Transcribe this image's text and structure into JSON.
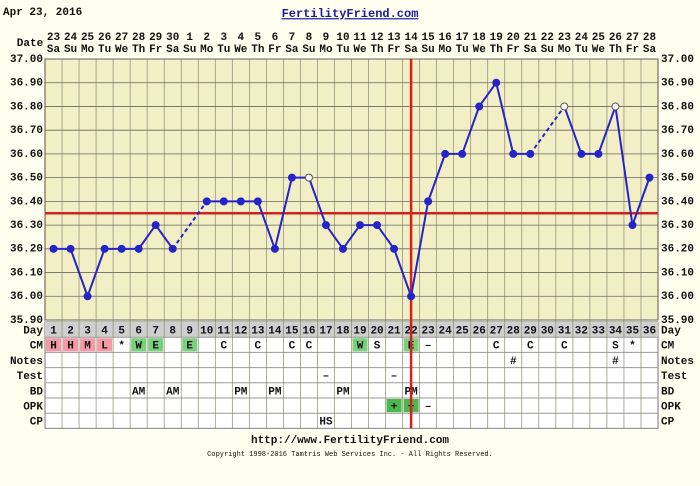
{
  "header": {
    "date": "Apr 23, 2016",
    "site": "FertilityFriend.com"
  },
  "chart_data": {
    "type": "line",
    "date_label": "Date",
    "dates": [
      "23",
      "24",
      "25",
      "26",
      "27",
      "28",
      "29",
      "30",
      "1",
      "2",
      "3",
      "4",
      "5",
      "6",
      "7",
      "8",
      "9",
      "10",
      "11",
      "12",
      "13",
      "14",
      "15",
      "16",
      "17",
      "18",
      "19",
      "20",
      "21",
      "22",
      "23",
      "24",
      "25",
      "26",
      "27",
      "28"
    ],
    "categories": [
      "Sa",
      "Su",
      "Mo",
      "Tu",
      "We",
      "Th",
      "Fr",
      "Sa",
      "Su",
      "Mo",
      "Tu",
      "We",
      "Th",
      "Fr",
      "Sa",
      "Su",
      "Mo",
      "Tu",
      "We",
      "Th",
      "Fr",
      "Sa",
      "Su",
      "Mo",
      "Tu",
      "We",
      "Th",
      "Fr",
      "Sa",
      "Su",
      "Mo",
      "Tu",
      "We",
      "Th",
      "Fr",
      "Sa"
    ],
    "values": [
      36.2,
      36.2,
      36.0,
      36.2,
      36.2,
      36.2,
      36.3,
      36.2,
      null,
      36.4,
      36.4,
      36.4,
      36.4,
      36.2,
      36.5,
      36.5,
      36.3,
      36.2,
      36.3,
      36.3,
      36.2,
      36.0,
      36.4,
      36.6,
      36.6,
      36.8,
      36.9,
      36.6,
      36.6,
      null,
      36.8,
      36.6,
      36.6,
      36.8,
      36.3,
      36.5
    ],
    "color": "#2424c8",
    "open_markers": [
      16,
      31,
      34
    ],
    "ylim": [
      35.9,
      37.0
    ],
    "yticks": [
      {
        "value": 37.0,
        "label": "37.00"
      },
      {
        "value": 36.9,
        "label": "36.90"
      },
      {
        "value": 36.8,
        "label": "36.80"
      },
      {
        "value": 36.7,
        "label": "36.70"
      },
      {
        "value": 36.6,
        "label": "36.60"
      },
      {
        "value": 36.5,
        "label": "36.50"
      },
      {
        "value": 36.4,
        "label": "36.40"
      },
      {
        "value": 36.3,
        "label": "36.30"
      },
      {
        "value": 36.2,
        "label": "36.20"
      },
      {
        "value": 36.1,
        "label": "36.10"
      },
      {
        "value": 36.0,
        "label": "36.00"
      },
      {
        "value": 35.9,
        "label": "35.90"
      }
    ],
    "grid": true,
    "coverline": 36.35,
    "ovulation_day": 22,
    "marker_line_color": "#d42020",
    "table": {
      "rows": [
        {
          "label": "Day",
          "cells": [
            1,
            2,
            3,
            4,
            5,
            6,
            7,
            8,
            9,
            10,
            11,
            12,
            13,
            14,
            15,
            16,
            17,
            18,
            19,
            20,
            21,
            22,
            23,
            24,
            25,
            26,
            27,
            28,
            29,
            30,
            31,
            32,
            33,
            34,
            35,
            36
          ]
        },
        {
          "label": "CM",
          "cells": [
            {
              "text": "H",
              "fill": "#f29aa6"
            },
            {
              "text": "H",
              "fill": "#f29aa6"
            },
            {
              "text": "M",
              "fill": "#f29aa6"
            },
            {
              "text": "L",
              "fill": "#f29aa6"
            },
            "*",
            {
              "text": "W",
              "fill": "#7ccf7c"
            },
            {
              "text": "E",
              "fill": "#7ccf7c"
            },
            null,
            {
              "text": "E",
              "fill": "#7ccf7c"
            },
            null,
            "C",
            null,
            "C",
            null,
            "C",
            "C",
            null,
            null,
            {
              "text": "W",
              "fill": "#7ccf7c"
            },
            "S",
            null,
            {
              "text": "E",
              "fill": "#7ccf7c"
            },
            "–",
            null,
            null,
            null,
            "C",
            null,
            "C",
            null,
            "C",
            null,
            null,
            "S",
            "*",
            null
          ]
        },
        {
          "label": "Notes",
          "cells": [
            null,
            null,
            null,
            null,
            null,
            null,
            null,
            null,
            null,
            null,
            null,
            null,
            null,
            null,
            null,
            null,
            null,
            null,
            null,
            null,
            null,
            null,
            null,
            null,
            null,
            null,
            null,
            "#",
            null,
            null,
            null,
            null,
            null,
            "#",
            null,
            null
          ]
        },
        {
          "label": "Test",
          "cells": [
            null,
            null,
            null,
            null,
            null,
            null,
            null,
            null,
            null,
            null,
            null,
            null,
            null,
            null,
            null,
            null,
            "–",
            null,
            null,
            null,
            "–",
            null,
            null,
            null,
            null,
            null,
            null,
            null,
            null,
            null,
            null,
            null,
            null,
            null,
            null,
            null
          ]
        },
        {
          "label": "BD",
          "cells": [
            null,
            null,
            null,
            null,
            null,
            "AM",
            null,
            "AM",
            null,
            null,
            null,
            "PM",
            null,
            "PM",
            null,
            null,
            null,
            "PM",
            null,
            null,
            null,
            "PM",
            null,
            null,
            null,
            null,
            null,
            null,
            null,
            null,
            null,
            null,
            null,
            null,
            null,
            null
          ]
        },
        {
          "label": "OPK",
          "cells": [
            null,
            null,
            null,
            null,
            null,
            null,
            null,
            null,
            null,
            null,
            null,
            null,
            null,
            null,
            null,
            null,
            null,
            null,
            null,
            null,
            {
              "text": "+",
              "fill": "#4cb84c"
            },
            {
              "text": "+",
              "fill": "#4cb84c"
            },
            "–",
            null,
            null,
            null,
            null,
            null,
            null,
            null,
            null,
            null,
            null,
            null,
            null,
            null
          ]
        },
        {
          "label": "CP",
          "cells": [
            null,
            null,
            null,
            null,
            null,
            null,
            null,
            null,
            null,
            null,
            null,
            null,
            null,
            null,
            null,
            null,
            "HS",
            null,
            null,
            null,
            null,
            null,
            null,
            null,
            null,
            null,
            null,
            null,
            null,
            null,
            null,
            null,
            null,
            null,
            null,
            null
          ]
        }
      ]
    }
  },
  "footer": {
    "url": "http://www.FertilityFriend.com",
    "copyright": "Copyright 1998-2016 Tamtris Web Services Inc. - All Rights Reserved."
  }
}
